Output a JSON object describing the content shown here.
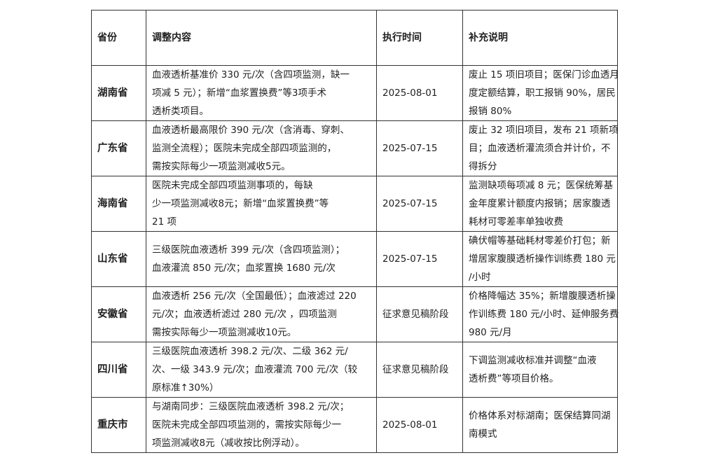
{
  "headers": [
    "省份",
    "调整内容",
    "执行时间",
    "补充说明"
  ],
  "rows": [
    {
      "province": "湖南省",
      "content": [
        "血液透析基准价 330 元/次（含四项监测，缺一",
        "项减 5 元）；新增“血浆置换费”等3项手术",
        "透析类项目。"
      ],
      "date": "2025-08-01",
      "note": [
        "废止 15 项旧项目；医保门诊血透月",
        "度定额结算，职工报销 90%，居民",
        "报销 80%"
      ]
    },
    {
      "province": "广东省",
      "content": [
        "血液透析最高限价 390 元/次（含消毒、穿刺、",
        "监测全流程）；医院未完成全部四项监测的，",
        "需按实际每少一项监测减收5元。"
      ],
      "date": "2025-07-15",
      "note": [
        "废止 32 项旧项目，发布 21 项新项",
        "目；血液透析灌流须合并计价，不",
        "得拆分"
      ]
    },
    {
      "province": "海南省",
      "content": [
        "医院未完成全部四项监测事项的，每缺",
        "少一项监测减收8元；新增“血浆置换费”等",
        "21 项"
      ],
      "date": "2025-07-15",
      "note": [
        "监测缺项每项减 8 元；医保统筹基",
        "金年度累计额度内报销；居家腹透",
        "耗材可零差率单独收费"
      ]
    },
    {
      "province": "山东省",
      "content": [
        "三级医院血液透析 399 元/次（含四项监测）；",
        "血液灌流 850 元/次；血浆置换 1680 元/次"
      ],
      "date": "2025-07-15",
      "note": [
        "碘伏帽等基础耗材零差价打包；新",
        "增居家腹膜透析操作训练费 180 元",
        "/小时"
      ]
    },
    {
      "province": "安徽省",
      "content": [
        "血液透析 256 元/次（全国最低）；血液滤过 220",
        "元/次；血液透析滤过 280 元/次 ，四项监测",
        "需按实际每少一项监测减收10元。"
      ],
      "date": "征求意见稿阶段",
      "note": [
        "价格降幅达 35%；新增腹膜透析操",
        "作训练费 180 元/小时、延伸服务费",
        "980 元/月"
      ]
    },
    {
      "province": "四川省",
      "content": [
        "三级医院血液透析 398.2 元/次、二级 362 元/",
        "次、一级 343.9 元/次；血液灌流 700 元/次（较",
        "原标准↑30%）"
      ],
      "date": "征求意见稿阶段",
      "note": [
        "下调监测减收标准并调整“血液",
        "透析费”等项目价格。"
      ]
    },
    {
      "province": "重庆市",
      "content": [
        "与湖南同步：三级医院血液透析 398.2 元/次；",
        "医院未完成全部四项监测的，需按实际每少一",
        "项监测减收8元（减收按比例浮动）。"
      ],
      "date": "2025-08-01",
      "note": [
        "价格体系对标湖南；医保结算同湖",
        "南模式"
      ]
    }
  ]
}
